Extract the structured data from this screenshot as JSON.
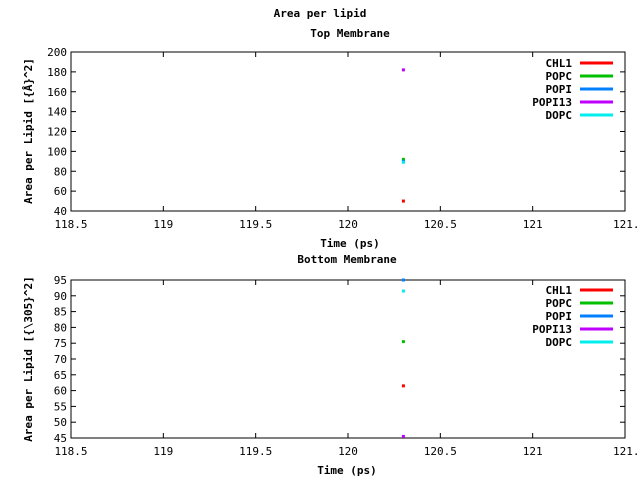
{
  "main_title": "Area per lipid",
  "chart_data": [
    {
      "type": "scatter",
      "title": "Top Membrane",
      "xlabel": "Time (ps)",
      "ylabel": "Area per Lipid [Å^2]",
      "ylabel_display": "Area per Lipid [{Å}^2]",
      "xlim": [
        118.5,
        121
      ],
      "ylim": [
        40,
        200
      ],
      "xticks": [
        "118.5",
        "119",
        "119.5",
        "120",
        "120.5",
        "121",
        "121."
      ],
      "yticks": [
        "40",
        "60",
        "80",
        "100",
        "120",
        "140",
        "160",
        "180",
        "200"
      ],
      "legend_position": "top-right",
      "grid": false,
      "series": [
        {
          "name": "CHL1",
          "color": "#ff0000",
          "x": [
            120
          ],
          "y": [
            50
          ]
        },
        {
          "name": "POPC",
          "color": "#00c000",
          "x": [
            120
          ],
          "y": [
            92
          ]
        },
        {
          "name": "POPI",
          "color": "#0080ff",
          "x": [
            120
          ],
          "y": [
            90
          ]
        },
        {
          "name": "POPI13",
          "color": "#c000ff",
          "x": [
            120
          ],
          "y": [
            182
          ]
        },
        {
          "name": "DOPC",
          "color": "#00eeee",
          "x": [
            120
          ],
          "y": [
            89
          ]
        }
      ]
    },
    {
      "type": "scatter",
      "title": "Bottom Membrane",
      "xlabel": "Time (ps)",
      "ylabel": "Area per Lipid [{\\305}^2]",
      "xlim": [
        118.5,
        121
      ],
      "ylim": [
        45,
        95
      ],
      "xticks": [
        "118.5",
        "119",
        "119.5",
        "120",
        "120.5",
        "121",
        "121."
      ],
      "yticks": [
        "45",
        "50",
        "55",
        "60",
        "65",
        "70",
        "75",
        "80",
        "85",
        "90",
        "95"
      ],
      "legend_position": "top-right",
      "grid": false,
      "series": [
        {
          "name": "CHL1",
          "color": "#ff0000",
          "x": [
            120
          ],
          "y": [
            61.5
          ]
        },
        {
          "name": "POPC",
          "color": "#00c000",
          "x": [
            120
          ],
          "y": [
            75.5
          ]
        },
        {
          "name": "POPI",
          "color": "#0080ff",
          "x": [
            120
          ],
          "y": [
            95
          ]
        },
        {
          "name": "POPI13",
          "color": "#c000ff",
          "x": [
            120
          ],
          "y": [
            45.5
          ]
        },
        {
          "name": "DOPC",
          "color": "#00eeee",
          "x": [
            120
          ],
          "y": [
            91.5
          ]
        }
      ]
    }
  ]
}
